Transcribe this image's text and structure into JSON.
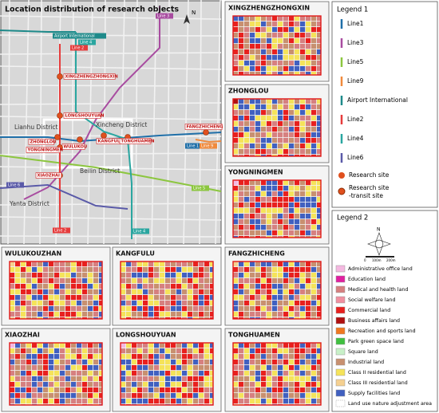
{
  "main_map": {
    "title": "Location distribution of research objects",
    "north": "N",
    "districts": [
      "Lianhu District",
      "Xincheng District",
      "Beilin District",
      "Yanta District"
    ],
    "stations": [
      "XINGZHENGZHONGXIN",
      "LONGSHOUYUAN",
      "ZHONGLOU",
      "WULUKOU",
      "KANGFULU",
      "TONGHUAMEN",
      "FANGZHICHENG",
      "YONGNINGMEN",
      "XIAOZHAI"
    ],
    "line_labels": [
      "Airport International",
      "Line 4",
      "Line 2",
      "Line 3",
      "Line 1",
      "Line 9",
      "Line 6",
      "Line 5",
      "Line 2",
      "Line 4"
    ]
  },
  "panels": [
    "XINGZHENGZHONGXIN",
    "ZHONGLOU",
    "YONGNINGMEN",
    "WULUKOUZHAN",
    "KANGFULU",
    "FANGZHICHENG",
    "XIAOZHAI",
    "LONGSHOUYUAN",
    "TONGHUAMEN"
  ],
  "legend1": {
    "title": "Legend 1",
    "items": [
      {
        "label": "Line1",
        "color": "#1f6fa8"
      },
      {
        "label": "Line3",
        "color": "#a84ca0"
      },
      {
        "label": "Line5",
        "color": "#8cc63f"
      },
      {
        "label": "Line9",
        "color": "#f08a3c"
      },
      {
        "label": "Airport International",
        "color": "#1e8a8a"
      },
      {
        "label": "Line2",
        "color": "#e63c3c"
      },
      {
        "label": "Line4",
        "color": "#2aa6a0"
      },
      {
        "label": "Line6",
        "color": "#5a5aa8"
      }
    ],
    "site": "Research site",
    "transit_site": [
      "Research site",
      "-transit site"
    ],
    "site_color": "#e0501e"
  },
  "legend2": {
    "title": "Legend 2",
    "north": "N",
    "scale": [
      "0",
      "100m",
      "200m"
    ],
    "items": [
      {
        "label": "Administrative office land",
        "color": "#f4b8e0"
      },
      {
        "label": "Education land",
        "color": "#e020a0"
      },
      {
        "label": "Medical and health land",
        "color": "#d68080"
      },
      {
        "label": "Social welfare land",
        "color": "#f090a0"
      },
      {
        "label": "Commercial land",
        "color": "#e8201e"
      },
      {
        "label": "Business affairs land",
        "color": "#b01010"
      },
      {
        "label": "Recreation and sports land",
        "color": "#f07820"
      },
      {
        "label": "Park green space land",
        "color": "#40c040"
      },
      {
        "label": "Square land",
        "color": "#c8f0c8"
      },
      {
        "label": "Industrial land",
        "color": "#c89070"
      },
      {
        "label": "Class II residential land",
        "color": "#f5e35a"
      },
      {
        "label": "Class III residential land",
        "color": "#f5d090"
      },
      {
        "label": "Supply facilities land",
        "color": "#4060c0"
      },
      {
        "label": "Land use nature adjustment area",
        "color": "#ffffff"
      }
    ]
  }
}
